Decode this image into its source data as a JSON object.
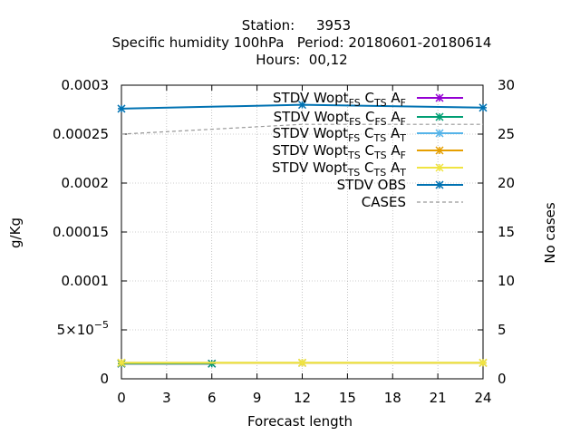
{
  "chart_data": {
    "type": "line",
    "title_lines": [
      "Station:     3953",
      "Specific humidity 100hPa   Period: 20180601-20180614",
      "Hours:  00,12"
    ],
    "xlabel": "Forecast length",
    "ylabel": "g/Kg",
    "y2label": "No cases",
    "xlim": [
      0,
      24
    ],
    "ylim": [
      0,
      0.0003
    ],
    "y2lim": [
      0,
      30
    ],
    "x_ticks": [
      0,
      3,
      6,
      9,
      12,
      15,
      18,
      21,
      24
    ],
    "y_ticks": [
      {
        "value": 0,
        "label": "0"
      },
      {
        "value": 5e-05,
        "label": "5x10-5"
      },
      {
        "value": 0.0001,
        "label": "0.0001"
      },
      {
        "value": 0.00015,
        "label": "0.00015"
      },
      {
        "value": 0.0002,
        "label": "0.0002"
      },
      {
        "value": 0.00025,
        "label": "0.00025"
      },
      {
        "value": 0.0003,
        "label": "0.0003"
      }
    ],
    "y2_ticks": [
      0,
      5,
      10,
      15,
      20,
      25,
      30
    ],
    "grid": true,
    "legend_position": "top-right",
    "series": [
      {
        "name": "STDV Wopt_FS C_TS A_F",
        "color": "#9400d3",
        "axis": "y",
        "marker": "x",
        "dash": false,
        "x": [
          0,
          6
        ],
        "y": [
          1.55e-05,
          1.55e-05
        ]
      },
      {
        "name": "STDV Wopt_FS C_FS A_F",
        "color": "#009e73",
        "axis": "y",
        "marker": "x",
        "dash": false,
        "x": [
          0,
          6
        ],
        "y": [
          1.55e-05,
          1.55e-05
        ]
      },
      {
        "name": "STDV Wopt_FS C_TS A_T",
        "color": "#56b4e9",
        "axis": "y",
        "marker": "x",
        "dash": false,
        "x": [
          0,
          12,
          24
        ],
        "y": [
          1.63e-05,
          1.63e-05,
          1.63e-05
        ]
      },
      {
        "name": "STDV Wopt_TS C_TS A_F",
        "color": "#e69f00",
        "axis": "y",
        "marker": "x",
        "dash": false,
        "x": [
          0,
          12,
          24
        ],
        "y": [
          1.63e-05,
          1.63e-05,
          1.63e-05
        ]
      },
      {
        "name": "STDV Wopt_TS C_TS A_T",
        "color": "#f0e442",
        "axis": "y",
        "marker": "x",
        "dash": false,
        "x": [
          0,
          12,
          24
        ],
        "y": [
          1.65e-05,
          1.65e-05,
          1.65e-05
        ]
      },
      {
        "name": "STDV OBS",
        "color": "#0072b2",
        "axis": "y",
        "marker": "x",
        "dash": false,
        "x": [
          0,
          12,
          24
        ],
        "y": [
          0.000276,
          0.00028,
          0.000277
        ]
      },
      {
        "name": "CASES",
        "color": "#999999",
        "axis": "y2",
        "marker": null,
        "dash": true,
        "x": [
          0,
          12,
          24
        ],
        "y": [
          25,
          26,
          26
        ]
      }
    ],
    "legend": [
      {
        "base": "STDV Wopt",
        "parts": [
          [
            "FS",
            true
          ],
          [
            " C",
            false
          ],
          [
            "TS",
            true
          ],
          [
            " A",
            false
          ],
          [
            "F",
            true
          ]
        ]
      },
      {
        "base": "STDV Wopt",
        "parts": [
          [
            "FS",
            true
          ],
          [
            " C",
            false
          ],
          [
            "FS",
            true
          ],
          [
            " A",
            false
          ],
          [
            "F",
            true
          ]
        ]
      },
      {
        "base": "STDV Wopt",
        "parts": [
          [
            "FS",
            true
          ],
          [
            " C",
            false
          ],
          [
            "TS",
            true
          ],
          [
            " A",
            false
          ],
          [
            "T",
            true
          ]
        ]
      },
      {
        "base": "STDV Wopt",
        "parts": [
          [
            "TS",
            true
          ],
          [
            " C",
            false
          ],
          [
            "TS",
            true
          ],
          [
            " A",
            false
          ],
          [
            "F",
            true
          ]
        ]
      },
      {
        "base": "STDV Wopt",
        "parts": [
          [
            "TS",
            true
          ],
          [
            " C",
            false
          ],
          [
            "TS",
            true
          ],
          [
            " A",
            false
          ],
          [
            "T",
            true
          ]
        ]
      },
      {
        "base": "STDV OBS",
        "parts": []
      },
      {
        "base": "CASES",
        "parts": []
      }
    ]
  }
}
